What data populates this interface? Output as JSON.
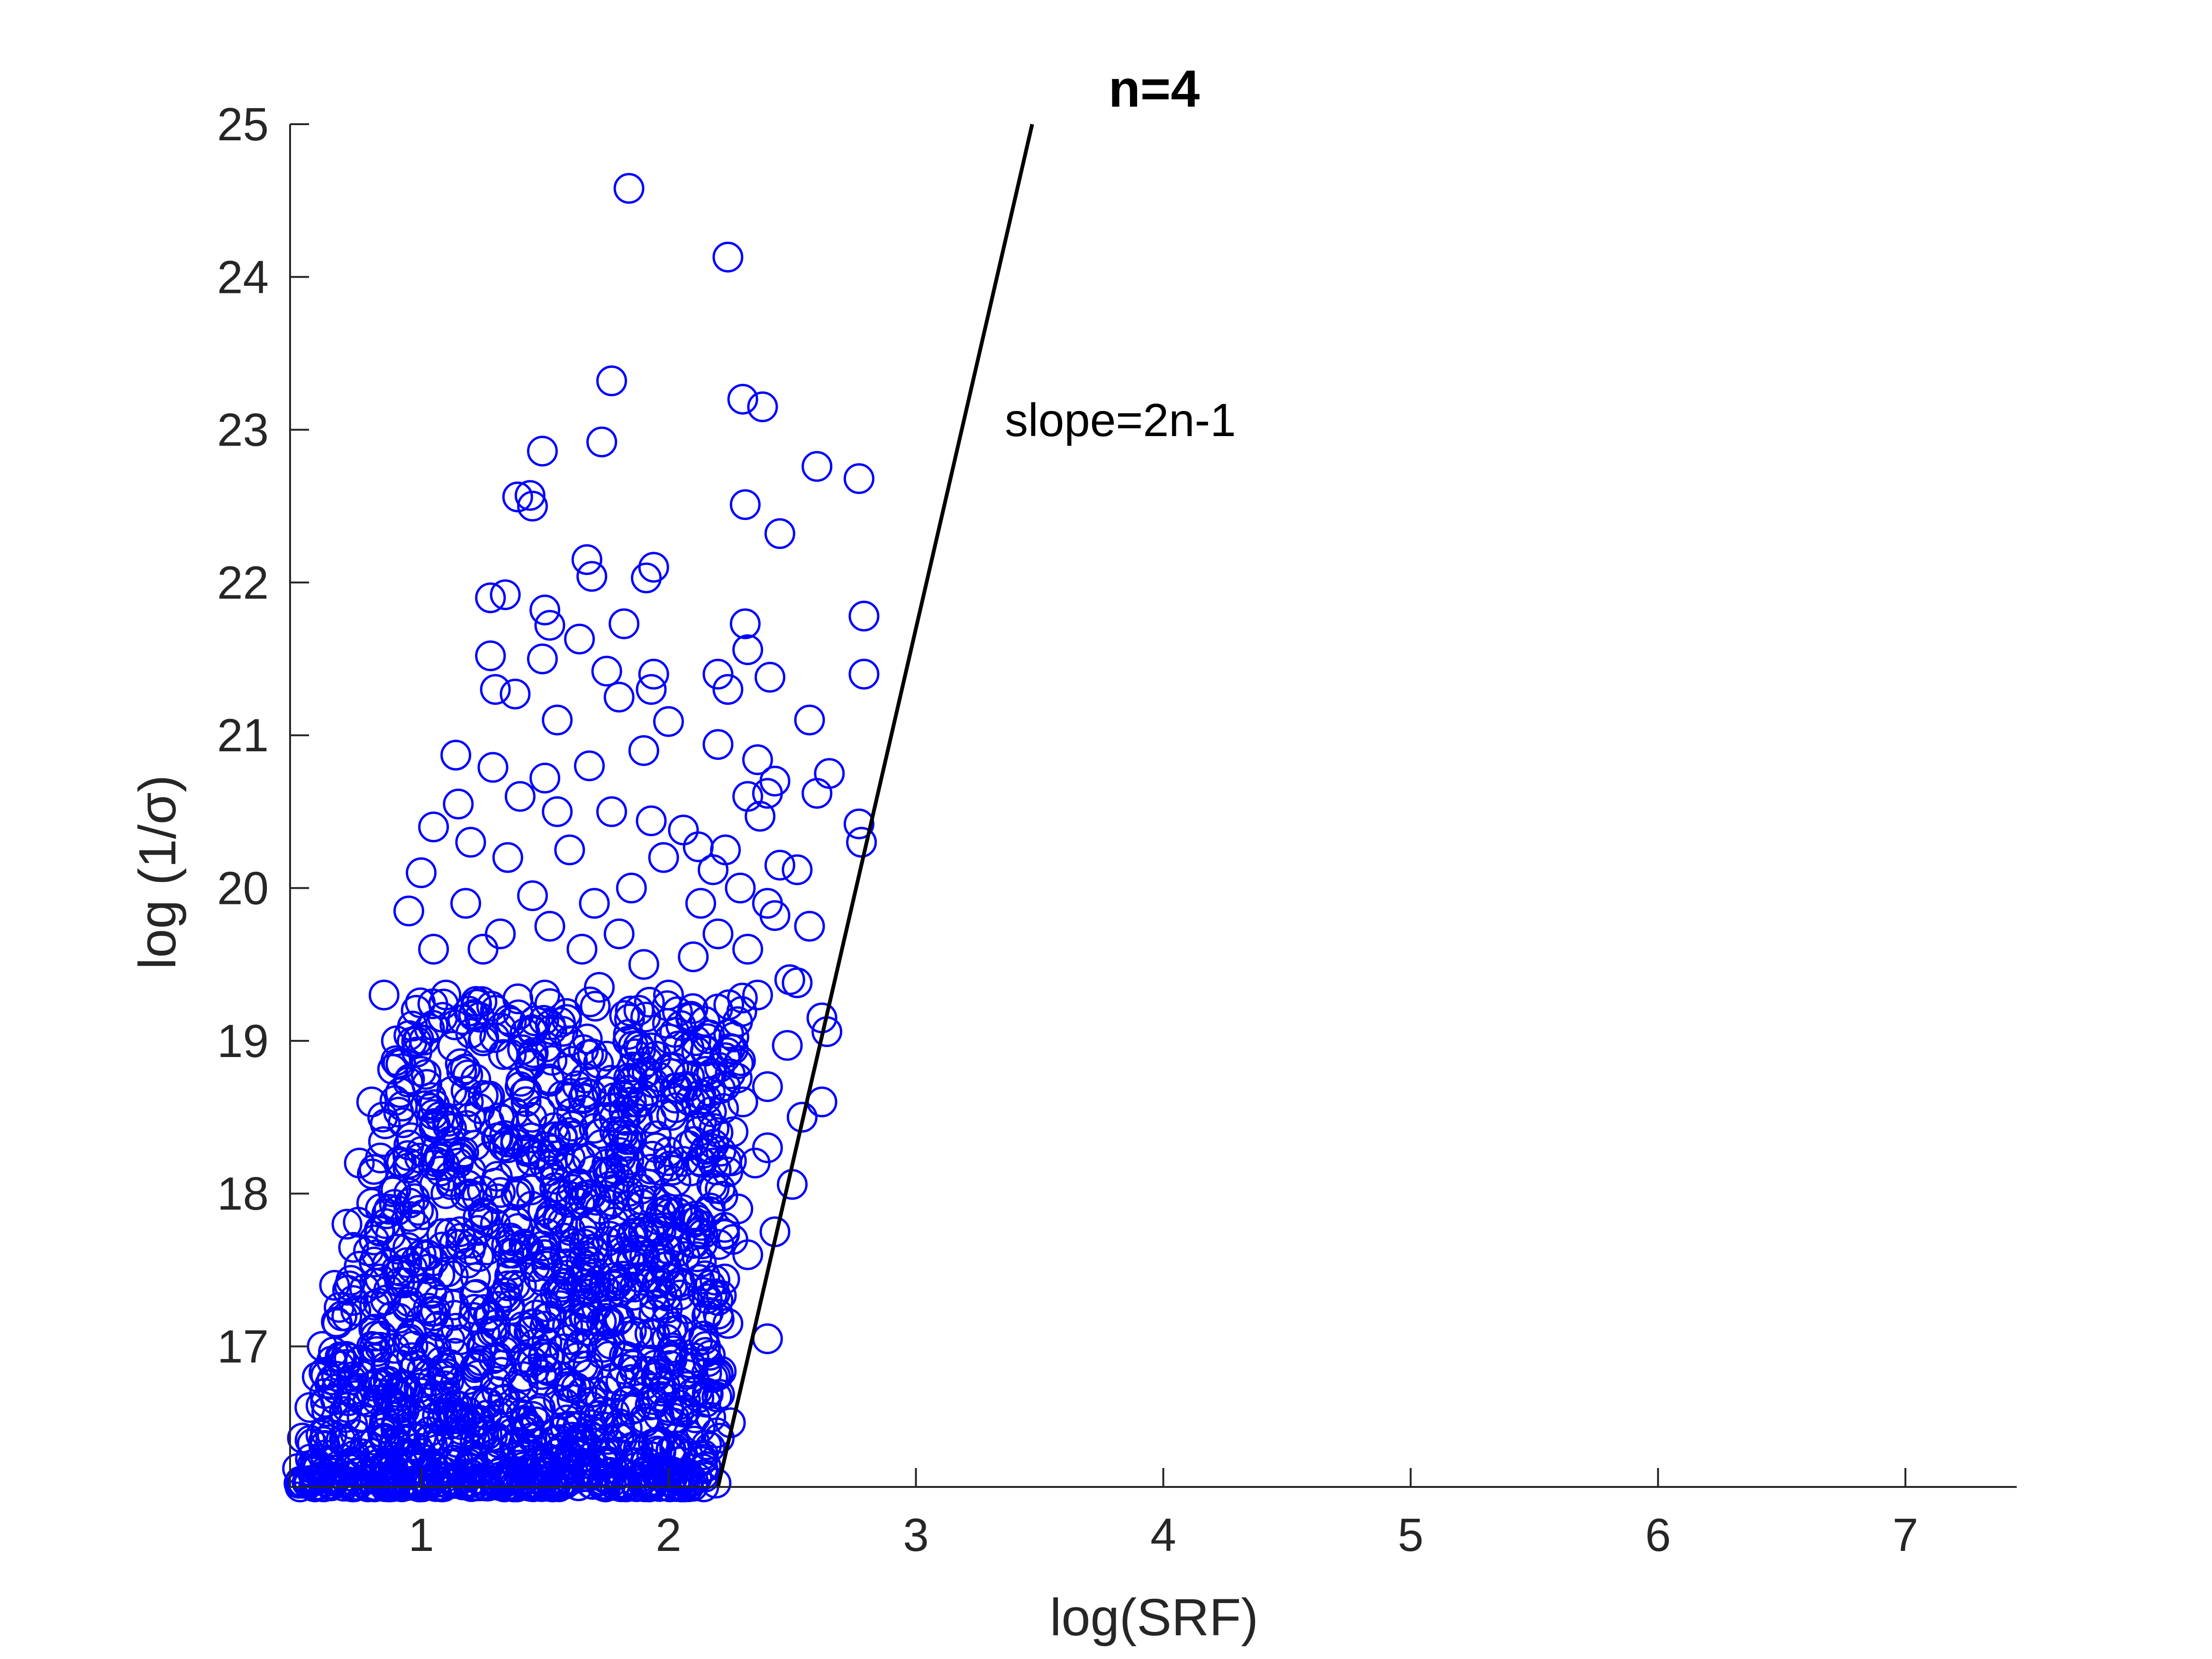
{
  "chart_data": {
    "type": "scatter",
    "title": "n=4",
    "xlabel": "log(SRF)",
    "ylabel": "log (1/σ)",
    "xlim": [
      0.47,
      7.45
    ],
    "ylim": [
      16.08,
      25
    ],
    "xticks": [
      "1",
      "2",
      "3",
      "4",
      "5",
      "6",
      "7"
    ],
    "yticks": [
      "17",
      "18",
      "19",
      "20",
      "21",
      "22",
      "23",
      "24",
      "25"
    ],
    "grid": false,
    "colors": {
      "marker": "#0000ff",
      "line": "#000000",
      "axis": "#262626"
    },
    "reference_line": {
      "label": "slope=2n-1",
      "slope": 7,
      "points": [
        [
          2.2,
          16.08
        ],
        [
          3.47,
          25
        ]
      ]
    },
    "series": [
      {
        "marker": "open-circle",
        "note_dense_cluster": "",
        "points": [
          [
            1.84,
            24.58
          ],
          [
            2.24,
            24.13
          ],
          [
            1.77,
            23.32
          ],
          [
            2.3,
            23.2
          ],
          [
            2.38,
            23.15
          ],
          [
            1.73,
            22.92
          ],
          [
            1.49,
            22.86
          ],
          [
            2.6,
            22.76
          ],
          [
            2.77,
            22.68
          ],
          [
            1.39,
            22.56
          ],
          [
            1.44,
            22.57
          ],
          [
            1.45,
            22.5
          ],
          [
            2.31,
            22.51
          ],
          [
            2.45,
            22.32
          ],
          [
            1.67,
            22.15
          ],
          [
            1.94,
            22.1
          ],
          [
            1.91,
            22.03
          ],
          [
            1.69,
            22.04
          ],
          [
            1.34,
            21.92
          ],
          [
            1.28,
            21.9
          ],
          [
            1.5,
            21.82
          ],
          [
            2.79,
            21.78
          ],
          [
            1.82,
            21.73
          ],
          [
            2.31,
            21.73
          ],
          [
            1.52,
            21.72
          ],
          [
            1.64,
            21.63
          ],
          [
            2.32,
            21.56
          ],
          [
            1.28,
            21.52
          ],
          [
            1.49,
            21.5
          ],
          [
            2.2,
            21.4
          ],
          [
            1.94,
            21.4
          ],
          [
            2.24,
            21.3
          ],
          [
            2.41,
            21.38
          ],
          [
            2.79,
            21.4
          ],
          [
            1.75,
            21.42
          ],
          [
            1.38,
            21.27
          ],
          [
            1.93,
            21.3
          ],
          [
            1.3,
            21.3
          ],
          [
            1.8,
            21.25
          ],
          [
            1.55,
            21.1
          ],
          [
            2.0,
            21.09
          ],
          [
            2.57,
            21.1
          ],
          [
            2.2,
            20.94
          ],
          [
            2.36,
            20.84
          ],
          [
            1.9,
            20.9
          ],
          [
            1.14,
            20.87
          ],
          [
            1.29,
            20.79
          ],
          [
            1.68,
            20.8
          ],
          [
            2.43,
            20.7
          ],
          [
            2.65,
            20.75
          ],
          [
            1.5,
            20.72
          ],
          [
            2.4,
            20.62
          ],
          [
            2.32,
            20.6
          ],
          [
            2.6,
            20.62
          ],
          [
            1.77,
            20.5
          ],
          [
            2.37,
            20.47
          ],
          [
            1.93,
            20.44
          ],
          [
            2.77,
            20.42
          ],
          [
            2.78,
            20.3
          ],
          [
            2.06,
            20.38
          ],
          [
            2.12,
            20.27
          ],
          [
            2.23,
            20.25
          ],
          [
            2.45,
            20.15
          ],
          [
            2.52,
            20.12
          ],
          [
            1.98,
            20.2
          ],
          [
            2.18,
            20.12
          ],
          [
            2.29,
            20.0
          ],
          [
            2.13,
            19.9
          ],
          [
            2.4,
            19.9
          ],
          [
            2.43,
            19.82
          ],
          [
            2.57,
            19.75
          ],
          [
            2.2,
            19.7
          ],
          [
            2.32,
            19.6
          ],
          [
            2.49,
            19.4
          ],
          [
            2.52,
            19.38
          ],
          [
            2.36,
            19.3
          ],
          [
            2.62,
            19.15
          ],
          [
            2.64,
            19.06
          ],
          [
            2.48,
            18.97
          ],
          [
            2.4,
            18.7
          ],
          [
            2.62,
            18.6
          ],
          [
            2.54,
            18.5
          ],
          [
            2.4,
            18.3
          ],
          [
            2.5,
            18.06
          ],
          [
            2.43,
            17.75
          ],
          [
            2.4,
            17.05
          ],
          [
            2.25,
            16.5
          ],
          [
            1.0,
            20.1
          ],
          [
            0.95,
            19.85
          ],
          [
            1.05,
            20.4
          ],
          [
            1.15,
            20.55
          ],
          [
            1.2,
            20.3
          ],
          [
            1.35,
            20.2
          ],
          [
            1.4,
            20.6
          ],
          [
            1.55,
            20.5
          ],
          [
            1.6,
            20.25
          ],
          [
            1.45,
            19.95
          ],
          [
            1.7,
            19.9
          ],
          [
            1.85,
            20.0
          ],
          [
            1.8,
            19.7
          ],
          [
            1.65,
            19.6
          ],
          [
            1.9,
            19.5
          ],
          [
            2.0,
            19.3
          ],
          [
            2.1,
            19.55
          ],
          [
            2.05,
            19.1
          ],
          [
            1.95,
            18.9
          ],
          [
            2.15,
            18.8
          ],
          [
            2.25,
            18.95
          ],
          [
            2.3,
            18.6
          ],
          [
            2.2,
            18.4
          ],
          [
            2.35,
            18.2
          ],
          [
            2.28,
            17.9
          ],
          [
            2.32,
            17.6
          ],
          [
            2.2,
            17.3
          ],
          [
            2.15,
            17.0
          ],
          [
            2.1,
            16.7
          ],
          [
            2.05,
            16.3
          ],
          [
            0.85,
            19.3
          ],
          [
            0.9,
            19.0
          ],
          [
            0.8,
            18.6
          ],
          [
            0.75,
            18.2
          ],
          [
            0.7,
            17.8
          ],
          [
            0.65,
            17.4
          ],
          [
            0.6,
            17.0
          ],
          [
            0.55,
            16.6
          ],
          [
            0.5,
            16.2
          ],
          [
            1.1,
            19.3
          ],
          [
            1.25,
            19.6
          ],
          [
            1.3,
            19.2
          ],
          [
            1.5,
            19.3
          ],
          [
            1.6,
            19.0
          ],
          [
            1.75,
            18.9
          ],
          [
            1.85,
            18.6
          ],
          [
            1.95,
            18.3
          ],
          [
            2.0,
            17.9
          ],
          [
            1.0,
            18.8
          ],
          [
            1.2,
            18.5
          ],
          [
            1.4,
            18.7
          ],
          [
            1.6,
            18.4
          ],
          [
            1.8,
            18.1
          ],
          [
            1.9,
            17.7
          ],
          [
            2.05,
            17.4
          ],
          [
            1.1,
            18.0
          ],
          [
            1.3,
            17.8
          ],
          [
            1.5,
            17.6
          ],
          [
            1.7,
            17.4
          ],
          [
            1.85,
            17.1
          ],
          [
            1.95,
            16.8
          ],
          [
            0.9,
            17.5
          ],
          [
            1.05,
            17.2
          ],
          [
            1.25,
            17.0
          ],
          [
            1.45,
            16.9
          ],
          [
            1.65,
            16.7
          ],
          [
            1.8,
            16.4
          ],
          [
            1.9,
            16.15
          ],
          [
            0.7,
            16.6
          ],
          [
            0.85,
            16.4
          ],
          [
            1.0,
            16.3
          ],
          [
            1.2,
            16.2
          ],
          [
            1.4,
            16.15
          ],
          [
            1.6,
            16.12
          ],
          [
            0.6,
            16.15
          ],
          [
            0.75,
            16.9
          ],
          [
            0.95,
            16.7
          ],
          [
            1.15,
            16.55
          ],
          [
            1.35,
            16.45
          ],
          [
            1.55,
            16.3
          ],
          [
            1.75,
            16.25
          ],
          [
            0.8,
            17.0
          ],
          [
            1.0,
            17.6
          ],
          [
            1.15,
            18.2
          ],
          [
            1.35,
            18.3
          ],
          [
            1.55,
            18.0
          ],
          [
            1.7,
            17.8
          ],
          [
            1.25,
            19.0
          ],
          [
            1.45,
            18.9
          ],
          [
            1.05,
            19.6
          ],
          [
            0.98,
            19.2
          ],
          [
            1.18,
            19.9
          ],
          [
            1.32,
            19.7
          ],
          [
            1.52,
            19.75
          ],
          [
            1.72,
            19.35
          ],
          [
            1.88,
            19.2
          ],
          [
            2.08,
            18.7
          ],
          [
            2.18,
            18.2
          ],
          [
            2.26,
            17.7
          ],
          [
            2.24,
            17.15
          ],
          [
            2.16,
            16.9
          ],
          [
            2.0,
            16.6
          ],
          [
            1.82,
            16.85
          ],
          [
            1.68,
            17.1
          ],
          [
            1.52,
            17.2
          ],
          [
            1.38,
            17.4
          ],
          [
            1.22,
            17.45
          ],
          [
            1.08,
            16.9
          ],
          [
            0.92,
            18.2
          ],
          [
            0.82,
            17.6
          ],
          [
            0.68,
            17.2
          ],
          [
            0.58,
            16.8
          ],
          [
            0.52,
            16.4
          ]
        ]
      }
    ]
  }
}
